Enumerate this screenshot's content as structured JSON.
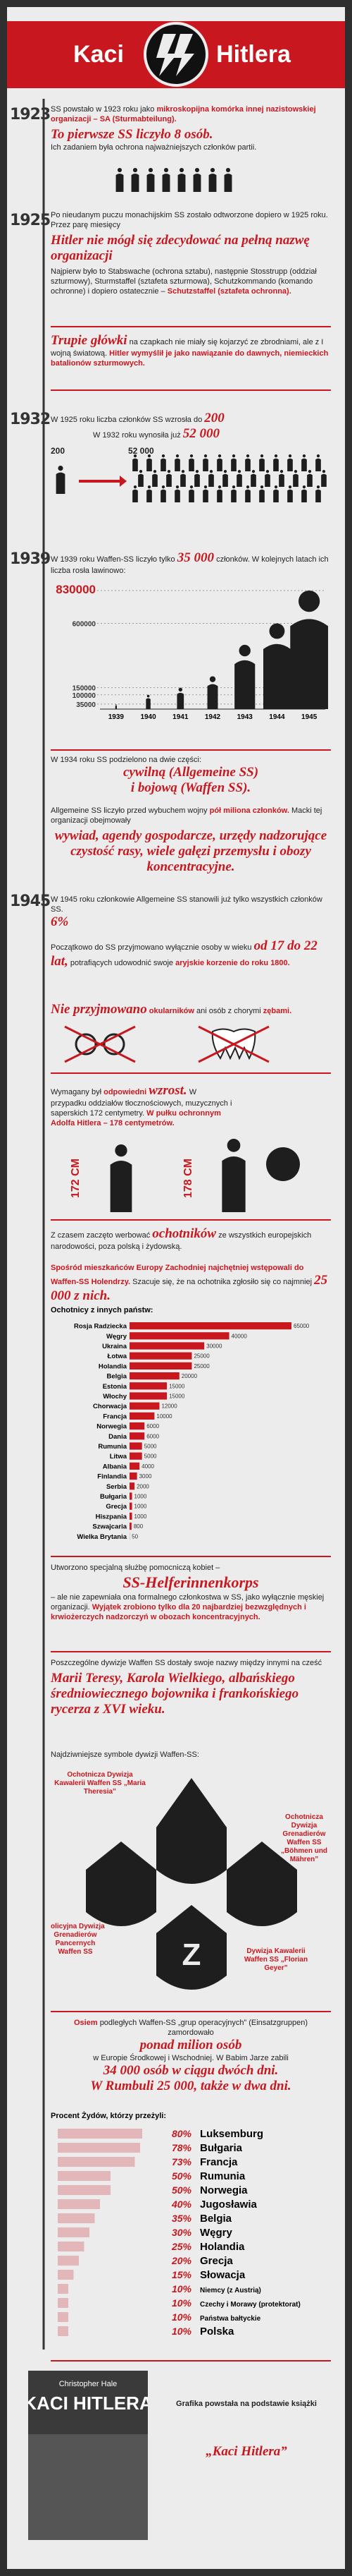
{
  "header": {
    "left": "Kaci",
    "right": "Hitlera"
  },
  "timeline": {
    "years": [
      "1923",
      "1925",
      "1932",
      "1939",
      "1945"
    ]
  },
  "s1923": {
    "t1": "SS powstało w 1923 roku jako",
    "t1b": "mikroskopijna komórka innej nazistowskiej organizacji – SA (Sturmabteilung).",
    "headline": "To pierwsze SS liczyło 8 osób.",
    "t2": "Ich zadaniem była ochrona najważniejszych członków partii."
  },
  "s1925": {
    "t1": "Po nieudanym puczu monachijskim SS zostało odtworzone dopiero w 1925 roku. Przez parę miesięcy",
    "headline": "Hitler nie mógł się zdecydować na pełną nazwę organizacji",
    "t2": "Najpierw było to Stabswache (ochrona sztabu), następnie Stosstrupp (oddział szturmowy), Sturmstaffel (sztafeta szturmowa), Schutzkommando (komando ochronne) i dopiero ostatecznie –",
    "t2b": "Schutzstaffel (sztafeta ochronna)."
  },
  "skull": {
    "headline": "Trupie główki",
    "t1": "na czapkach nie miały się kojarzyć ze zbrodniami, ale z I wojną światową.",
    "t1b": "Hitler wymyślił je jako nawiązanie do dawnych, niemieckich batalionów szturmowych."
  },
  "s1932": {
    "t1": "W 1925 roku liczba członków SS wzrosła do",
    "n1": "200",
    "t2": "W 1932 roku wynosiła już",
    "n2": "52 000"
  },
  "s1939": {
    "t1": "W 1939 roku Waffen-SS liczyło tylko",
    "n1": "35 000",
    "t2": "członków. W kolejnych latach ich liczba rosła lawinowo:"
  },
  "split": {
    "t1": "W 1934 roku SS podzielono na dwie części:",
    "h1": "cywilną (Allgemeine SS)",
    "h2": "i bojową (Waffen SS)."
  },
  "allg": {
    "t1": "Allgemeine SS liczyło przed wybuchem wojny",
    "t1b": "pół miliona członków.",
    "t2": "Macki tej organizacji obejmowały",
    "headline": "wywiad, agendy gospodarcze, urzędy nadzorujące czystość rasy, wiele gałęzi przemysłu i obozy koncentracyjne."
  },
  "s1945": {
    "t1": "W 1945 roku członkowie Allgemeine SS stanowili już tylko",
    "t2": "wszystkich członków SS.",
    "n": "6%"
  },
  "age": {
    "t1": "Początkowo do SS przyjmowano wyłącznie osoby",
    "t1a": "w wieku",
    "h": "od 17 do 22 lat,",
    "t2": "potrafiących udowodnić swoje",
    "t2b": "aryjskie korzenie do roku 1800."
  },
  "reject": {
    "h": "Nie przyjmowano",
    "t1": "okularników",
    "t2": "ani osób z chorymi",
    "t3": "zębami."
  },
  "height": {
    "t1": "Wymagany był",
    "t1b": "odpowiedni",
    "h": "wzrost.",
    "t2": "W przypadku oddziałów tłocznościowych, muzycznych i saperskich 172 centymetry.",
    "t2b": "W pułku ochronnym Adolfa Hitlera – 178 centymetrów.",
    "c1": "172 CM",
    "c2": "178 CM"
  },
  "volunteers": {
    "t1": "Z czasem zaczęto werbować",
    "h": "ochotników",
    "t2": "ze wszystkich europejskich narodowości, poza polską i żydowską.",
    "t3": "Spośród mieszkańców Europy Zachodniej najchętniej wstępowali do Waffen-SS Holendrzy.",
    "t4": "Szacuje się, że na ochotnika zgłosiło się co najmniej",
    "n": "25 000 z nich."
  },
  "women": {
    "t1": "Utworzono specjalną służbę pomocniczą kobiet –",
    "h": "SS-Helferinnenkorps",
    "t2": "– ale nie zapewniała ona formalnego członkostwa w SS, jako wyłącznie męskiej organizacji.",
    "t2b": "Wyjątek zrobiono tylko dla 20 najbardziej bezwzględnych i krwiożerczych nadzorczyń w obozach koncentracyjnych."
  },
  "divisions": {
    "t1": "Poszczególne dywizje Waffen SS dostały swoje nazwy między innymi na cześć",
    "headline": "Marii Teresy, Karola Wielkiego, albańskiego średniowiecznego bojownika i frankońskiego rycerza z XVI wieku."
  },
  "symbols": {
    "title": "Najdziwniejsze symbole dywizji Waffen-SS:",
    "labels": [
      "Ochotnicza Dywizja Kawalerii Waffen SS „Maria Theresia”",
      "Policyjna Dywizja Grenadierów Pancernych Waffen SS",
      "Ochotnicza Dywizja Grenadierów Waffen SS „Böhmen und Mähren”",
      "Dywizja Kawalerii Waffen SS „Florian Geyer”"
    ]
  },
  "einsatz": {
    "t1": "Osiem",
    "t1b": "podległych Waffen-SS „grup operacyjnych” (Einsatzgruppen) zamordowało",
    "h1": "ponad milion osób",
    "t2": "w Europie Środkowej i Wschodniej. W Babim Jarze zabili",
    "h2": "34 000 osób w ciągu dwóch dni.",
    "h3": "W Rumbuli 25 000, także w dwa dni."
  },
  "footer": {
    "author": "Christopher Hale",
    "book": "KACI HITLERA",
    "t1": "Grafika powstała na podstawie książki",
    "h": "„Kaci Hitlera”"
  },
  "chart_data": [
    {
      "type": "pictogram",
      "categories": [
        "1939",
        "1940",
        "1941",
        "1942",
        "1943",
        "1944",
        "1945"
      ],
      "values": [
        35000,
        100000,
        150000,
        230000,
        450000,
        600000,
        830000
      ],
      "color": "#1e1e1e",
      "ylim": [
        0,
        830000
      ],
      "yticks": [
        35000,
        100000,
        150000,
        600000,
        830000
      ]
    },
    {
      "type": "hbar",
      "title": "Ochotnicy z innych państw:",
      "color": "#c8171e",
      "categories": [
        "Rosja Radziecka",
        "Węgry",
        "Ukraina",
        "Łotwa",
        "Holandia",
        "Belgia",
        "Estonia",
        "Włochy",
        "Chorwacja",
        "Francja",
        "Norwegia",
        "Dania",
        "Rumunia",
        "Litwa",
        "Albania",
        "Finlandia",
        "Serbia",
        "Bułgaria",
        "Grecja",
        "Hiszpania",
        "Szwajcaria",
        "Wielka Brytania"
      ],
      "values": [
        65000,
        40000,
        30000,
        25000,
        25000,
        20000,
        15000,
        15000,
        12000,
        10000,
        6000,
        6000,
        5000,
        5000,
        4000,
        3000,
        2000,
        1000,
        1000,
        1000,
        800,
        50
      ],
      "xlim": [
        0,
        65000
      ]
    },
    {
      "type": "hbar",
      "title": "Procent Żydów, którzy przeżyli:",
      "color": "#c8171e",
      "categories": [
        "Luksemburg",
        "Bułgaria",
        "Francja",
        "Rumunia",
        "Norwegia",
        "Jugosławia",
        "Belgia",
        "Węgry",
        "Holandia",
        "Grecja",
        "Słowacja",
        "Niemcy (z Austrią)",
        "Czechy i Morawy (protektorat)",
        "Państwa bałtyckie",
        "Polska"
      ],
      "values": [
        80,
        78,
        73,
        50,
        50,
        40,
        35,
        30,
        25,
        20,
        15,
        10,
        10,
        10,
        10
      ],
      "value_labels": [
        "80%",
        "78%",
        "73%",
        "50%",
        "50%",
        "40%",
        "35%",
        "30%",
        "25%",
        "20%",
        "15%",
        "10%",
        "10%",
        "10%",
        "10%"
      ],
      "xlim": [
        0,
        100
      ]
    }
  ]
}
